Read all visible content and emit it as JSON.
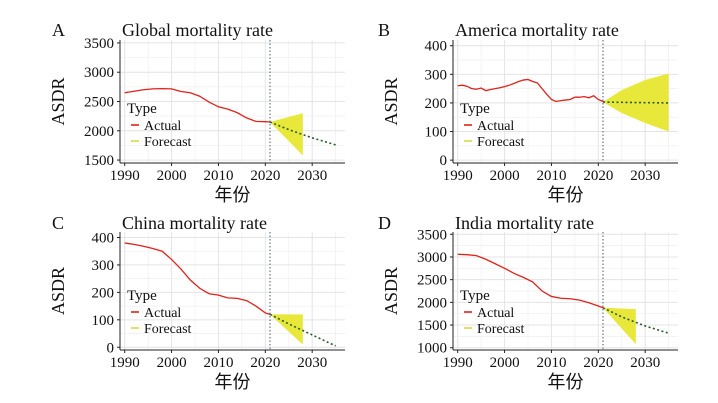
{
  "chart_data": [
    {
      "type": "line",
      "panel_letter": "A",
      "title": "Global mortality rate",
      "xlabel": "年份",
      "ylabel": "ASDR",
      "xlim": [
        1989,
        2037
      ],
      "ylim": [
        1450,
        3550
      ],
      "xticks": [
        1990,
        2000,
        2010,
        2020,
        2030
      ],
      "yticks": [
        1500,
        2000,
        2500,
        3000,
        3500
      ],
      "grid": true,
      "vline_x": 2021,
      "legend": {
        "title": "Type",
        "position": "bottom-left",
        "entries": [
          "Actual",
          "Forecast"
        ]
      },
      "series": [
        {
          "name": "Actual",
          "color": "#e0221b",
          "x": [
            1990,
            1992,
            1994,
            1996,
            1998,
            2000,
            2002,
            2004,
            2006,
            2008,
            2010,
            2012,
            2014,
            2016,
            2018,
            2020,
            2021
          ],
          "y": [
            2650,
            2675,
            2700,
            2715,
            2720,
            2715,
            2670,
            2650,
            2590,
            2490,
            2410,
            2370,
            2310,
            2220,
            2160,
            2155,
            2150
          ]
        },
        {
          "name": "Forecast",
          "color": "#e8e83a",
          "line_color": "#2a5a2a",
          "style": "dotted",
          "x": [
            2021,
            2025,
            2030,
            2035
          ],
          "y": [
            2150,
            2020,
            1880,
            1760
          ],
          "band_x": [
            2021,
            2028
          ],
          "band_lower": [
            2150,
            1580
          ],
          "band_upper": [
            2150,
            2300
          ]
        }
      ]
    },
    {
      "type": "line",
      "panel_letter": "B",
      "title": "America mortality rate",
      "xlabel": "年份",
      "ylabel": "ASDR",
      "xlim": [
        1989,
        2037
      ],
      "ylim": [
        -10,
        420
      ],
      "xticks": [
        1990,
        2000,
        2010,
        2020,
        2030
      ],
      "yticks": [
        0,
        100,
        200,
        300,
        400
      ],
      "grid": true,
      "vline_x": 2021,
      "legend": {
        "title": "Type",
        "position": "bottom-left",
        "entries": [
          "Actual",
          "Forecast"
        ]
      },
      "series": [
        {
          "name": "Actual",
          "color": "#e0221b",
          "x": [
            1990,
            1991,
            1992,
            1993,
            1994,
            1995,
            1996,
            1997,
            1998,
            1999,
            2000,
            2001,
            2002,
            2003,
            2004,
            2005,
            2006,
            2007,
            2008,
            2009,
            2010,
            2011,
            2012,
            2013,
            2014,
            2015,
            2016,
            2017,
            2018,
            2019,
            2020,
            2021
          ],
          "y": [
            260,
            262,
            258,
            250,
            248,
            252,
            243,
            247,
            250,
            253,
            257,
            262,
            268,
            275,
            280,
            282,
            275,
            270,
            250,
            230,
            212,
            205,
            208,
            210,
            212,
            220,
            220,
            222,
            218,
            225,
            212,
            205
          ]
        },
        {
          "name": "Forecast",
          "color": "#e8e83a",
          "line_color": "#2a5a2a",
          "style": "dotted",
          "x": [
            2021,
            2025,
            2030,
            2035
          ],
          "y": [
            203,
            202,
            201,
            200
          ],
          "band_x": [
            2021,
            2025,
            2030,
            2035
          ],
          "band_lower": [
            203,
            165,
            130,
            100
          ],
          "band_upper": [
            203,
            245,
            280,
            303
          ]
        }
      ]
    },
    {
      "type": "line",
      "panel_letter": "C",
      "title": "China mortality rate",
      "xlabel": "年份",
      "ylabel": "ASDR",
      "xlim": [
        1989,
        2037
      ],
      "ylim": [
        -10,
        420
      ],
      "xticks": [
        1990,
        2000,
        2010,
        2020,
        2030
      ],
      "yticks": [
        0,
        100,
        200,
        300,
        400
      ],
      "grid": true,
      "vline_x": 2021,
      "legend": {
        "title": "Type",
        "position": "bottom-left",
        "entries": [
          "Actual",
          "Forecast"
        ]
      },
      "series": [
        {
          "name": "Actual",
          "color": "#e0221b",
          "x": [
            1990,
            1992,
            1994,
            1996,
            1998,
            2000,
            2002,
            2004,
            2006,
            2008,
            2010,
            2012,
            2014,
            2016,
            2018,
            2020,
            2021
          ],
          "y": [
            380,
            375,
            368,
            360,
            350,
            320,
            285,
            245,
            215,
            195,
            190,
            180,
            178,
            170,
            150,
            125,
            120
          ]
        },
        {
          "name": "Forecast",
          "color": "#e8e83a",
          "line_color": "#2a5a2a",
          "style": "dotted",
          "x": [
            2021,
            2025,
            2030,
            2035
          ],
          "y": [
            120,
            85,
            45,
            5
          ],
          "band_x": [
            2021,
            2028
          ],
          "band_lower": [
            120,
            10
          ],
          "band_upper": [
            120,
            120
          ]
        }
      ]
    },
    {
      "type": "line",
      "panel_letter": "D",
      "title": "India mortality rate",
      "xlabel": "年份",
      "ylabel": "ASDR",
      "xlim": [
        1989,
        2037
      ],
      "ylim": [
        950,
        3550
      ],
      "xticks": [
        1990,
        2000,
        2010,
        2020,
        2030
      ],
      "yticks": [
        1000,
        1500,
        2000,
        2500,
        3000,
        3500
      ],
      "grid": true,
      "vline_x": 2021,
      "legend": {
        "title": "Type",
        "position": "bottom-left",
        "entries": [
          "Actual",
          "Forecast"
        ]
      },
      "series": [
        {
          "name": "Actual",
          "color": "#e0221b",
          "x": [
            1990,
            1992,
            1994,
            1996,
            1998,
            2000,
            2002,
            2004,
            2006,
            2008,
            2010,
            2012,
            2014,
            2016,
            2018,
            2020,
            2021
          ],
          "y": [
            3060,
            3050,
            3030,
            2950,
            2850,
            2750,
            2640,
            2550,
            2450,
            2250,
            2130,
            2090,
            2080,
            2050,
            1990,
            1920,
            1880
          ]
        },
        {
          "name": "Forecast",
          "color": "#e8e83a",
          "line_color": "#2a5a2a",
          "style": "dotted",
          "x": [
            2021,
            2025,
            2030,
            2035
          ],
          "y": [
            1880,
            1680,
            1480,
            1320
          ],
          "band_x": [
            2021,
            2028
          ],
          "band_lower": [
            1880,
            1080
          ],
          "band_upper": [
            1880,
            1850
          ]
        }
      ]
    }
  ]
}
